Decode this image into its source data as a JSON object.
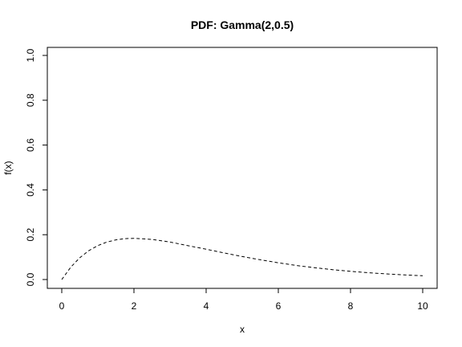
{
  "chart_data": {
    "type": "line",
    "title": "PDF: Gamma(2,0.5)",
    "xlabel": "x",
    "ylabel": "f(x)",
    "xlim": [
      0,
      10
    ],
    "ylim": [
      0,
      1
    ],
    "x_ticks": [
      0,
      2,
      4,
      6,
      8,
      10
    ],
    "x_tick_labels": [
      "0",
      "2",
      "4",
      "6",
      "8",
      "10"
    ],
    "y_ticks": [
      0,
      0.2,
      0.4,
      0.6,
      0.8,
      1
    ],
    "y_tick_labels": [
      "0.0",
      "0.2",
      "0.4",
      "0.6",
      "0.8",
      "1.0"
    ],
    "grid": false,
    "line_style": "dashed",
    "line_color": "#000000",
    "series": [
      {
        "name": "Gamma(2,0.5) density",
        "x": [
          0,
          0.25,
          0.5,
          0.75,
          1,
          1.25,
          1.5,
          1.75,
          2,
          2.5,
          3,
          3.5,
          4,
          4.5,
          5,
          5.5,
          6,
          6.5,
          7,
          7.5,
          8,
          8.5,
          9,
          9.5,
          10
        ],
        "y": [
          0,
          0.0551,
          0.0974,
          0.1289,
          0.1516,
          0.1671,
          0.1771,
          0.1825,
          0.1839,
          0.1791,
          0.1673,
          0.151,
          0.1353,
          0.1186,
          0.1026,
          0.0881,
          0.0747,
          0.0627,
          0.0528,
          0.0441,
          0.0366,
          0.0303,
          0.025,
          0.0206,
          0.0168
        ]
      }
    ]
  }
}
